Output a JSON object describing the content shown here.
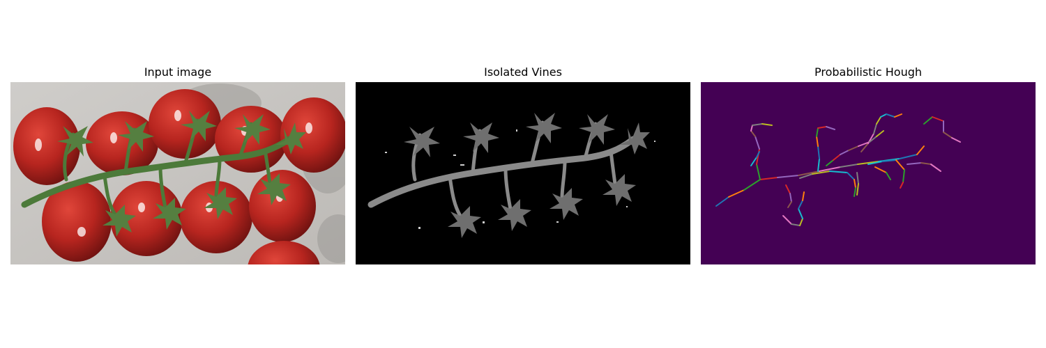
{
  "figure": {
    "panels": [
      {
        "title": "Input image"
      },
      {
        "title": "Isolated Vines"
      },
      {
        "title": "Probabilistic Hough"
      }
    ]
  },
  "colors": {
    "input_background": "#c9c7c4",
    "tomato": "#b7251f",
    "vine": "#4c7a3a",
    "vines_background": "#000000",
    "vines_stem": "#8a8a8a",
    "hough_background": "#440154"
  },
  "hough_segment_colors": [
    "#1f77b4",
    "#ff7f0e",
    "#2ca02c",
    "#d62728",
    "#9467bd",
    "#8c564b",
    "#e377c2",
    "#7f7f7f",
    "#bcbd22",
    "#17becf"
  ]
}
